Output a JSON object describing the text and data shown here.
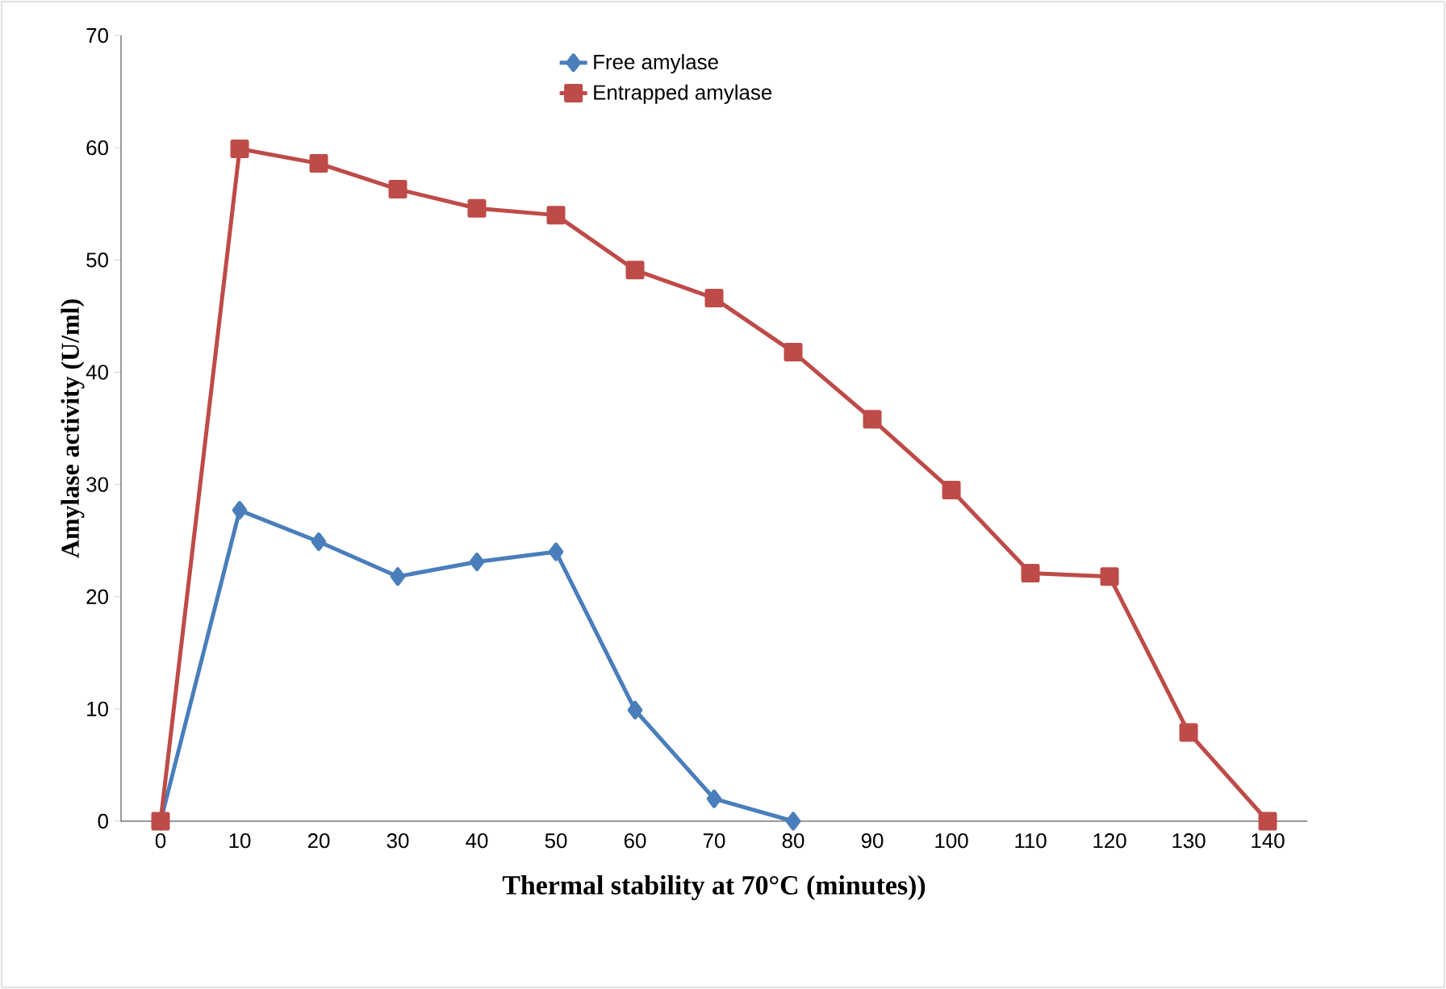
{
  "chart_data": {
    "type": "line",
    "xlabel": "Thermal stability at 70°C (minutes))",
    "ylabel": "Amylase activity (U/ml)",
    "categories": [
      "0",
      "10",
      "20",
      "30",
      "40",
      "50",
      "60",
      "70",
      "80",
      "90",
      "100",
      "110",
      "120",
      "130",
      "140"
    ],
    "series": [
      {
        "name": "Free amylase",
        "color": "#4a7ebb",
        "marker": "diamond",
        "values": [
          0,
          27.7,
          24.9,
          21.8,
          23.1,
          24.0,
          9.9,
          2.0,
          0,
          null,
          null,
          null,
          null,
          null,
          null
        ]
      },
      {
        "name": "Entrapped amylase",
        "color": "#be4b48",
        "marker": "square",
        "values": [
          0,
          59.9,
          58.6,
          56.3,
          54.6,
          54.0,
          49.1,
          46.6,
          41.8,
          35.8,
          29.5,
          22.1,
          21.8,
          7.9,
          0
        ]
      }
    ],
    "ylim": [
      0,
      70
    ],
    "yticks": [
      0,
      10,
      20,
      30,
      40,
      50,
      60,
      70
    ],
    "grid": false,
    "legend": "top",
    "line_style": "solid"
  }
}
